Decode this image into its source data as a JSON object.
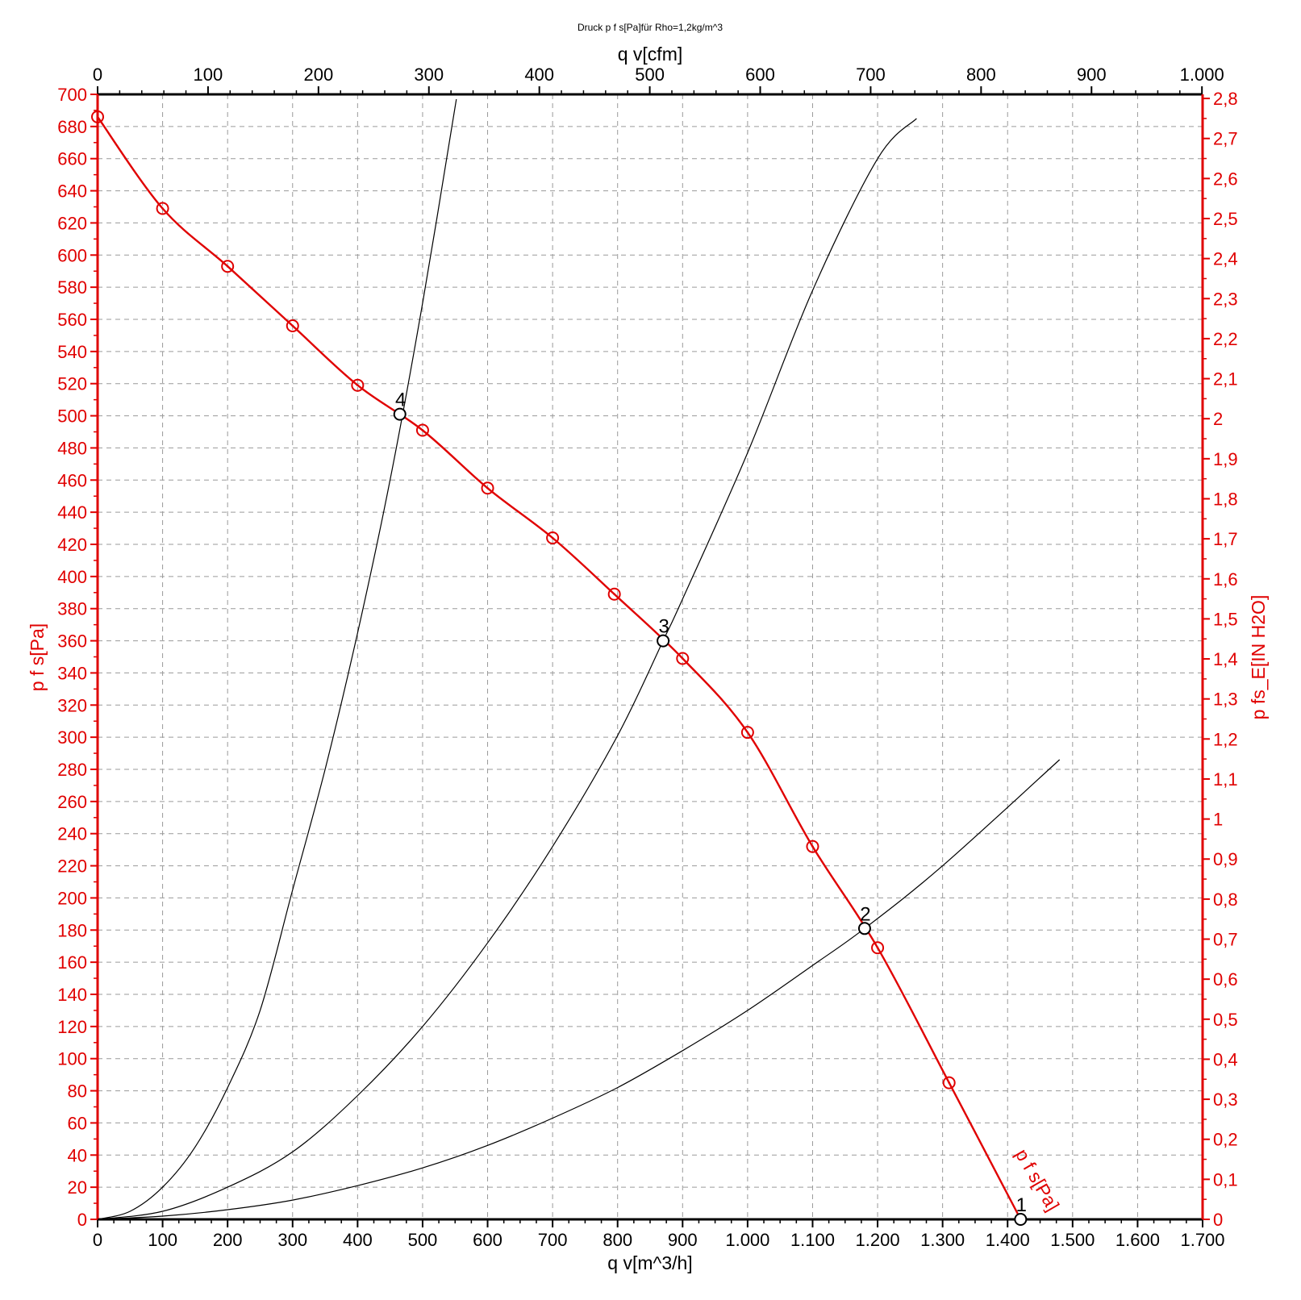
{
  "chart_data": {
    "type": "line",
    "title": "Druck p f s[Pa]für Rho=1,2kg/m^3",
    "xlabel_bottom": "q v[m^3/h]",
    "xlabel_top": "q v[cfm]",
    "ylabel_left": "p f s[Pa]",
    "ylabel_right": "p fs_E[IN H2O]",
    "xlim": [
      0,
      1700
    ],
    "ylim": [
      0,
      700
    ],
    "x_ticks": [
      0,
      100,
      200,
      300,
      400,
      500,
      600,
      700,
      800,
      900,
      1000,
      1100,
      1200,
      1300,
      1400,
      1500,
      1600,
      1700
    ],
    "x_tick_labels": [
      "0",
      "100",
      "200",
      "300",
      "400",
      "500",
      "600",
      "700",
      "800",
      "900",
      "1.000",
      "1.100",
      "1.200",
      "1.300",
      "1.400",
      "1.500",
      "1.600",
      "1.700"
    ],
    "x_top_ticks_cfm": [
      0,
      100,
      200,
      300,
      400,
      500,
      600,
      700,
      800,
      900,
      1000
    ],
    "x_top_tick_labels": [
      "0",
      "100",
      "200",
      "300",
      "400",
      "500",
      "600",
      "700",
      "800",
      "900",
      "1.000"
    ],
    "y_ticks": [
      0,
      20,
      40,
      60,
      80,
      100,
      120,
      140,
      160,
      180,
      200,
      220,
      240,
      260,
      280,
      300,
      320,
      340,
      360,
      380,
      400,
      420,
      440,
      460,
      480,
      500,
      520,
      540,
      560,
      580,
      600,
      620,
      640,
      660,
      680,
      700
    ],
    "y_tick_labels": [
      "0",
      "20",
      "40",
      "60",
      "80",
      "100",
      "120",
      "140",
      "160",
      "180",
      "200",
      "220",
      "240",
      "260",
      "280",
      "300",
      "320",
      "340",
      "360",
      "380",
      "400",
      "420",
      "440",
      "460",
      "480",
      "500",
      "520",
      "540",
      "560",
      "580",
      "600",
      "620",
      "640",
      "660",
      "680",
      "700"
    ],
    "y_right_ticks_inh2o": [
      0,
      0.1,
      0.2,
      0.3,
      0.4,
      0.5,
      0.6,
      0.7,
      0.8,
      0.9,
      1,
      1.1,
      1.2,
      1.3,
      1.4,
      1.5,
      1.6,
      1.7,
      1.8,
      1.9,
      2,
      2.1,
      2.2,
      2.3,
      2.4,
      2.5,
      2.6,
      2.7,
      2.8
    ],
    "y_right_tick_labels": [
      "0",
      "0,1",
      "0,2",
      "0,3",
      "0,4",
      "0,5",
      "0,6",
      "0,7",
      "0,8",
      "0,9",
      "1",
      "1,1",
      "1,2",
      "1,3",
      "1,4",
      "1,5",
      "1,6",
      "1,7",
      "1,8",
      "1,9",
      "2",
      "2,1",
      "2,2",
      "2,3",
      "2,4",
      "2,5",
      "2,6",
      "2,7",
      "2,8"
    ],
    "grid": true,
    "fan_curve": {
      "name": "p f s[Pa]",
      "color": "#e00000",
      "x": [
        0,
        100,
        200,
        300,
        400,
        500,
        600,
        700,
        795,
        900,
        1000,
        1100,
        1200,
        1310,
        1420
      ],
      "y": [
        686,
        629,
        593,
        556,
        519,
        491,
        455,
        424,
        389,
        349,
        303,
        232,
        169,
        85,
        0
      ]
    },
    "system_curves": [
      {
        "color": "#000000",
        "x": [
          0,
          50,
          100,
          150,
          200,
          250,
          300,
          350,
          400,
          450,
          500,
          552
        ],
        "y": [
          0,
          5,
          20,
          45,
          82,
          130,
          205,
          280,
          365,
          460,
          570,
          697
        ]
      },
      {
        "color": "#000000",
        "x": [
          0,
          100,
          200,
          300,
          400,
          500,
          600,
          700,
          800,
          870,
          900,
          1000,
          1100,
          1200,
          1260
        ],
        "y": [
          0,
          5,
          20,
          42,
          77,
          120,
          172,
          232,
          301,
          360,
          386,
          477,
          578,
          660,
          685
        ]
      },
      {
        "color": "#000000",
        "x": [
          0,
          100,
          200,
          300,
          400,
          500,
          600,
          700,
          800,
          900,
          1000,
          1100,
          1180,
          1300,
          1480
        ],
        "y": [
          0,
          2,
          6,
          12,
          21,
          32,
          46,
          63,
          82,
          105,
          130,
          158,
          181,
          220,
          286
        ]
      }
    ],
    "operating_points": [
      {
        "label": "1",
        "x": 1420,
        "y": 0
      },
      {
        "label": "2",
        "x": 1180,
        "y": 181
      },
      {
        "label": "3",
        "x": 870,
        "y": 360
      },
      {
        "label": "4",
        "x": 465,
        "y": 501
      }
    ],
    "curve_label": "p f s[Pa]"
  }
}
